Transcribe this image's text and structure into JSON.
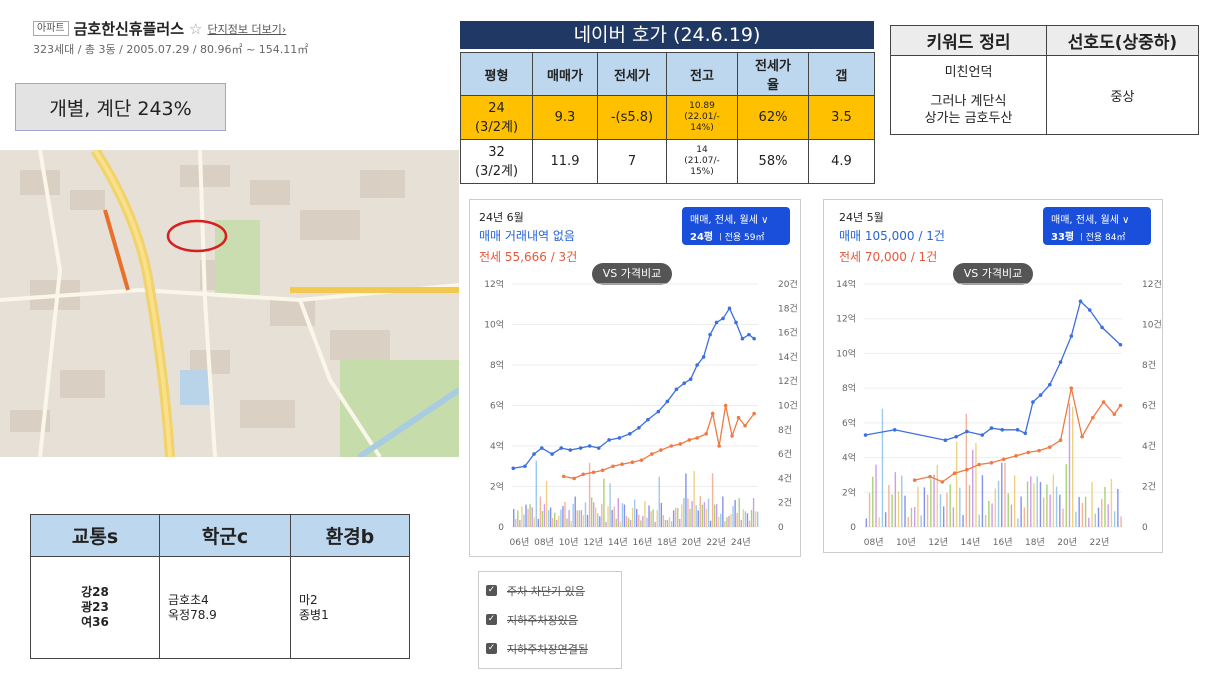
{
  "header": {
    "tag": "아파트",
    "name": "금호한신휴플러스",
    "star": "☆",
    "more_link": "단지정보 더보기",
    "chevron": "›",
    "subinfo": "323세대 / 총 3동 / 2005.07.29 / 80.96㎡ ~ 154.11㎡"
  },
  "fsi_box": "개별, 계단 243%",
  "naver": {
    "title": "네이버 호가 (24.6.19)",
    "headers": [
      "평형",
      "매매가",
      "전세가",
      "전고",
      "전세가율",
      "갭"
    ],
    "rows": [
      {
        "cells": [
          "24\n(3/2계)",
          "9.3",
          "-(s5.8)",
          "10.89\n(22.01/-\n14%)",
          "62%",
          "3.5"
        ]
      },
      {
        "cells": [
          "32\n(3/2계)",
          "11.9",
          "7",
          "14\n(21.07/-\n15%)",
          "58%",
          "4.9"
        ]
      }
    ]
  },
  "keyword": {
    "headers": [
      "키워드 정리",
      "선호도(상중하)"
    ],
    "line1": "미친언덕",
    "line2": "그러나 계단식",
    "line3": "상가는 금호두산",
    "preference": "중상"
  },
  "transport": {
    "headers": [
      "교통s",
      "학군c",
      "환경b"
    ],
    "col1": [
      "강28",
      "광23",
      "여36"
    ],
    "col2": [
      "금호초4",
      "옥정78.9"
    ],
    "col3": [
      "마2",
      "종병1"
    ]
  },
  "chart_left": {
    "period": "24년 6월",
    "sale_text": "매매 거래내역 없음",
    "jeonse_text": "전세 55,666 / 3건",
    "deal_button": "매매, 전세, 월세",
    "chevron": "∨",
    "size_label": "24평",
    "area_label": "전용 59㎡",
    "vs_button": "VS 가격비교"
  },
  "chart_right": {
    "period": "24년 5월",
    "sale_text": "매매 105,000 / 1건",
    "jeonse_text": "전세 70,000 / 1건",
    "deal_button": "매매, 전세, 월세",
    "chevron": "∨",
    "size_label": "33평",
    "area_label": "전용 84㎡",
    "vs_button": "VS 가격비교"
  },
  "checkboxes": [
    {
      "label": "주차 차단기 있음",
      "checked": true
    },
    {
      "label": "지하주차장있음",
      "checked": true
    },
    {
      "label": "지하주차장연결됨",
      "checked": true
    }
  ],
  "colors": {
    "sale": "#3c6fe0",
    "jeonse": "#f07a44",
    "accent_yellow": "#ffc000",
    "title_navy": "#1f3864"
  },
  "chart_data": [
    {
      "type": "line",
      "y_unit": "억",
      "y_ticks": [
        "0",
        "2억",
        "4억",
        "6억",
        "8억",
        "10억",
        "12억"
      ],
      "y2_ticks": [
        "0",
        "2건",
        "4건",
        "6건",
        "8건",
        "10건",
        "12건",
        "14건",
        "16건",
        "18건",
        "20건"
      ],
      "x_ticks": [
        "06년",
        "08년",
        "10년",
        "12년",
        "14년",
        "16년",
        "18년",
        "20년",
        "22년",
        "24년"
      ],
      "ylim": [
        0,
        12
      ],
      "y2lim": [
        0,
        20
      ],
      "xlim": [
        2005.5,
        2024.5
      ],
      "series": [
        {
          "name": "매매",
          "color": "#3c6fe0",
          "x": [
            2005.6,
            2006.5,
            2007.2,
            2007.8,
            2008.6,
            2009.3,
            2010.0,
            2010.8,
            2011.5,
            2012.2,
            2013.0,
            2013.8,
            2014.6,
            2015.3,
            2016.0,
            2016.8,
            2017.5,
            2018.2,
            2018.8,
            2019.3,
            2019.8,
            2020.3,
            2020.8,
            2021.3,
            2021.8,
            2022.3,
            2022.8,
            2023.3,
            2023.8,
            2024.2
          ],
          "y": [
            2.9,
            3.0,
            3.6,
            3.9,
            3.6,
            3.9,
            3.8,
            3.9,
            4.0,
            3.9,
            4.3,
            4.4,
            4.6,
            4.9,
            5.3,
            5.7,
            6.2,
            6.8,
            7.1,
            7.3,
            8.0,
            8.4,
            9.5,
            10.1,
            10.3,
            10.8,
            10.1,
            9.3,
            9.5,
            9.3
          ]
        },
        {
          "name": "전세",
          "color": "#f07a44",
          "x": [
            2009.5,
            2010.3,
            2011.0,
            2011.8,
            2012.5,
            2013.3,
            2014.0,
            2014.8,
            2015.5,
            2016.3,
            2017.0,
            2017.8,
            2018.5,
            2019.2,
            2019.8,
            2020.5,
            2021.0,
            2021.5,
            2022.0,
            2022.5,
            2023.0,
            2023.5,
            2024.2
          ],
          "y": [
            2.5,
            2.4,
            2.6,
            2.7,
            2.8,
            3.0,
            3.1,
            3.2,
            3.3,
            3.6,
            3.8,
            4.0,
            4.1,
            4.3,
            4.4,
            4.6,
            5.6,
            4.0,
            6.0,
            4.5,
            5.4,
            5.0,
            5.6
          ]
        }
      ]
    },
    {
      "type": "line",
      "y_unit": "억",
      "y_ticks": [
        "0",
        "2억",
        "4억",
        "6억",
        "8억",
        "10억",
        "12억",
        "14억"
      ],
      "y2_ticks": [
        "0",
        "2건",
        "4건",
        "6건",
        "8건",
        "10건",
        "12건"
      ],
      "x_ticks": [
        "08년",
        "10년",
        "12년",
        "14년",
        "16년",
        "18년",
        "20년",
        "22년"
      ],
      "ylim": [
        0,
        14
      ],
      "y2lim": [
        0,
        12
      ],
      "xlim": [
        2007.5,
        2024.3
      ],
      "series": [
        {
          "name": "매매",
          "color": "#3c6fe0",
          "x": [
            2007.6,
            2009.5,
            2012.8,
            2013.5,
            2014.2,
            2015.2,
            2015.8,
            2016.5,
            2017.5,
            2018.0,
            2018.5,
            2019.0,
            2019.6,
            2020.3,
            2021.0,
            2021.6,
            2022.2,
            2023.0,
            2024.2
          ],
          "y": [
            5.3,
            5.6,
            5.0,
            5.2,
            5.5,
            5.3,
            5.7,
            5.6,
            5.6,
            5.4,
            7.2,
            7.6,
            8.2,
            9.5,
            11.0,
            13.0,
            12.5,
            11.5,
            10.5
          ]
        },
        {
          "name": "전세",
          "color": "#f07a44",
          "x": [
            2010.8,
            2011.8,
            2012.6,
            2013.4,
            2014.2,
            2015.0,
            2015.8,
            2016.6,
            2017.4,
            2018.2,
            2018.9,
            2019.6,
            2020.3,
            2021.0,
            2021.7,
            2022.4,
            2023.1,
            2023.8,
            2024.2
          ],
          "y": [
            2.7,
            2.9,
            2.6,
            3.1,
            3.3,
            3.6,
            3.7,
            3.9,
            4.1,
            4.3,
            4.4,
            4.6,
            5.0,
            8.0,
            5.2,
            6.3,
            7.2,
            6.5,
            7.0
          ]
        }
      ]
    }
  ]
}
